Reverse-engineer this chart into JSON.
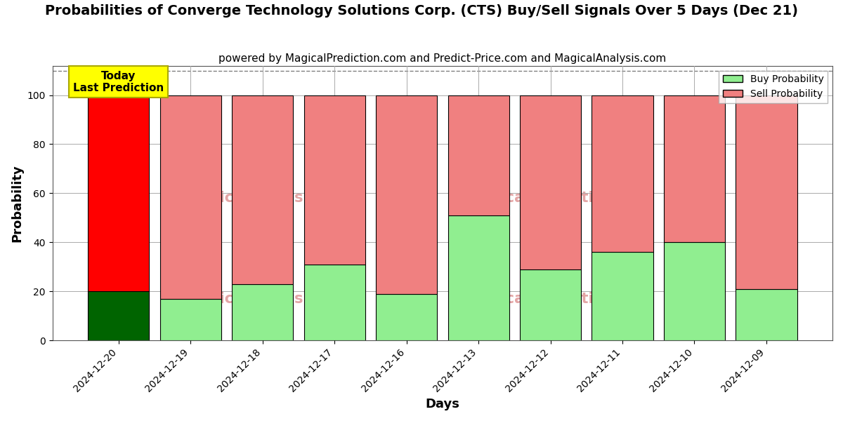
{
  "title": "Probabilities of Converge Technology Solutions Corp. (CTS) Buy/Sell Signals Over 5 Days (Dec 21)",
  "subtitle": "powered by MagicalPrediction.com and Predict-Price.com and MagicalAnalysis.com",
  "xlabel": "Days",
  "ylabel": "Probability",
  "dates": [
    "2024-12-20",
    "2024-12-19",
    "2024-12-18",
    "2024-12-17",
    "2024-12-16",
    "2024-12-13",
    "2024-12-12",
    "2024-12-11",
    "2024-12-10",
    "2024-12-09"
  ],
  "buy_values": [
    20,
    17,
    23,
    31,
    19,
    51,
    29,
    36,
    40,
    21
  ],
  "sell_values": [
    80,
    83,
    77,
    69,
    81,
    49,
    71,
    64,
    60,
    79
  ],
  "today_buy_color": "#006400",
  "today_sell_color": "#ff0000",
  "other_buy_color": "#90ee90",
  "other_sell_color": "#f08080",
  "bar_edge_color": "#000000",
  "ylim_max": 112,
  "yticks": [
    0,
    20,
    40,
    60,
    80,
    100
  ],
  "dashed_line_y": 110,
  "legend_buy_label": "Buy Probability",
  "legend_sell_label": "Sell Probability",
  "today_label": "Today\nLast Prediction",
  "today_label_bg": "#ffff00",
  "title_fontsize": 14,
  "subtitle_fontsize": 11,
  "axis_label_fontsize": 13,
  "tick_fontsize": 10,
  "background_color": "#ffffff",
  "grid_color": "#aaaaaa",
  "bar_width": 0.85
}
